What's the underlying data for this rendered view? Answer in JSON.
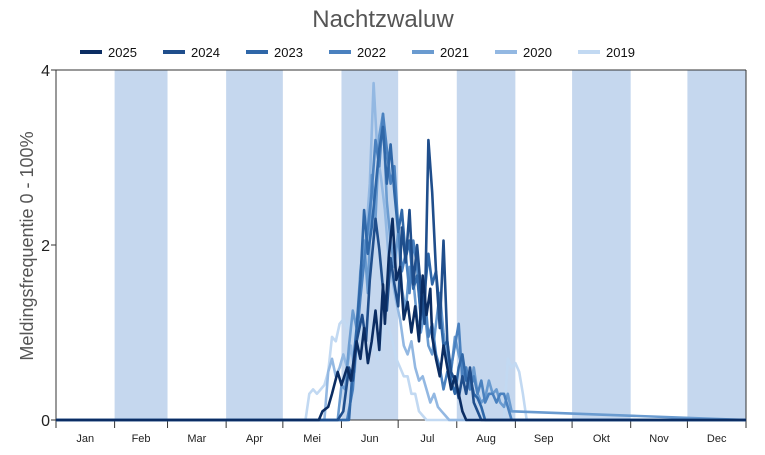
{
  "chart_data": {
    "type": "line",
    "title": "Nachtzwaluw",
    "xlabel": "",
    "ylabel": "Meldingsfrequentie 0 - 100%",
    "ylim": [
      0,
      4
    ],
    "y_ticks": [
      0,
      2,
      4
    ],
    "grid": false,
    "legend_position": "top",
    "month_labels": [
      "Jan",
      "Feb",
      "Mar",
      "Apr",
      "Mei",
      "Jun",
      "Jul",
      "Aug",
      "Sep",
      "Okt",
      "Nov",
      "Dec"
    ],
    "x_unit": "day of year",
    "xlim": [
      1,
      366
    ],
    "series": [
      {
        "name": "2025",
        "color": "#0b2d63",
        "x": [
          1,
          140,
          142,
          145,
          147,
          150,
          152,
          155,
          157,
          160,
          162,
          164,
          166,
          168,
          170,
          172,
          174,
          175,
          177,
          179,
          181,
          183,
          185,
          187,
          189,
          191,
          193,
          195,
          197,
          199,
          200,
          202,
          204,
          206,
          208,
          210,
          212,
          214,
          216,
          218,
          366
        ],
        "y": [
          0,
          0,
          0.1,
          0.15,
          0.3,
          0.55,
          0.4,
          0.6,
          0.45,
          0.9,
          0.7,
          1.05,
          0.65,
          0.9,
          1.25,
          0.8,
          1.55,
          1.1,
          1.85,
          2.3,
          1.6,
          1.75,
          1.15,
          1.35,
          1.0,
          1.3,
          0.9,
          1.65,
          1.2,
          1.5,
          0.95,
          0.7,
          0.5,
          0.85,
          0.6,
          0.35,
          0.5,
          0.3,
          0.1,
          0,
          0
        ]
      },
      {
        "name": "2024",
        "color": "#1f4e8c",
        "x": [
          1,
          150,
          153,
          156,
          158,
          160,
          163,
          165,
          167,
          170,
          172,
          174,
          176,
          178,
          180,
          182,
          184,
          186,
          188,
          190,
          192,
          194,
          196,
          198,
          200,
          202,
          204,
          206,
          208,
          210,
          212,
          214,
          216,
          218,
          220,
          222,
          224,
          226,
          366
        ],
        "y": [
          0,
          0,
          0.1,
          0.6,
          0.45,
          0.9,
          1.2,
          0.9,
          1.6,
          2.3,
          1.95,
          1.5,
          1.25,
          1.85,
          1.55,
          1.3,
          2.2,
          1.8,
          2.4,
          1.55,
          2.0,
          1.5,
          1.1,
          3.2,
          2.6,
          1.7,
          1.05,
          2.05,
          0.9,
          0.55,
          0.45,
          0.25,
          0.5,
          0.3,
          0.6,
          0.2,
          0.1,
          0,
          0
        ]
      },
      {
        "name": "2023",
        "color": "#2f67a8",
        "x": [
          1,
          156,
          158,
          160,
          162,
          164,
          166,
          168,
          170,
          172,
          174,
          176,
          178,
          180,
          182,
          184,
          186,
          188,
          190,
          192,
          194,
          196,
          198,
          200,
          202,
          204,
          206,
          208,
          210,
          212,
          214,
          216,
          218,
          220,
          222,
          224,
          226,
          228,
          366
        ],
        "y": [
          0,
          0,
          0.6,
          1.05,
          1.6,
          2.4,
          1.9,
          2.2,
          2.65,
          3.1,
          3.35,
          2.7,
          3.15,
          2.6,
          2.15,
          2.4,
          1.85,
          2.05,
          1.5,
          1.65,
          1.2,
          1.45,
          1.9,
          1.55,
          1.7,
          1.25,
          0.85,
          0.9,
          0.45,
          0.3,
          0.6,
          0.75,
          0.45,
          0.5,
          0.3,
          0.25,
          0.15,
          0,
          0
        ]
      },
      {
        "name": "2022",
        "color": "#4a81bf",
        "x": [
          1,
          155,
          158,
          160,
          162,
          164,
          166,
          168,
          170,
          172,
          174,
          176,
          178,
          180,
          182,
          184,
          186,
          188,
          190,
          192,
          194,
          196,
          198,
          200,
          202,
          204,
          206,
          208,
          210,
          212,
          214,
          216,
          218,
          220,
          222,
          224,
          226,
          228,
          230,
          232,
          234,
          236,
          238,
          240,
          242,
          366
        ],
        "y": [
          0,
          0,
          0.35,
          0.9,
          1.4,
          1.8,
          2.2,
          2.6,
          3.2,
          2.9,
          3.5,
          3.1,
          2.7,
          2.9,
          2.2,
          1.7,
          1.9,
          1.45,
          2.05,
          1.75,
          1.15,
          1.45,
          0.95,
          1.1,
          0.75,
          0.6,
          0.35,
          0.55,
          0.6,
          0.85,
          1.1,
          0.45,
          0.6,
          0.35,
          0.5,
          0.3,
          0.45,
          0.2,
          0.3,
          0.3,
          0.2,
          0.3,
          0.3,
          0.15,
          0,
          0
        ]
      },
      {
        "name": "2021",
        "color": "#6a9bd0",
        "x": [
          1,
          150,
          152,
          154,
          156,
          158,
          160,
          162,
          164,
          166,
          168,
          170,
          172,
          174,
          176,
          178,
          180,
          182,
          184,
          186,
          188,
          190,
          192,
          194,
          196,
          198,
          200,
          202,
          204,
          206,
          208,
          210,
          212,
          214,
          216,
          218,
          220,
          222,
          224,
          226,
          228,
          230,
          232,
          234,
          236,
          238,
          240,
          242,
          366
        ],
        "y": [
          0,
          0,
          0.4,
          0.35,
          0.85,
          1.25,
          1.05,
          1.7,
          2.05,
          1.45,
          2.8,
          2.3,
          3.25,
          3.5,
          2.5,
          2.05,
          1.75,
          2.15,
          1.5,
          1.25,
          1.75,
          1.6,
          1.15,
          1.0,
          1.25,
          0.85,
          0.75,
          1.1,
          1.45,
          1.0,
          0.65,
          0.55,
          0.95,
          0.75,
          0.6,
          0.45,
          0.35,
          0.6,
          0.3,
          0.2,
          0.25,
          0.45,
          0.3,
          0.35,
          0.2,
          0.15,
          0.3,
          0.1,
          0
        ]
      },
      {
        "name": "2020",
        "color": "#93b8e2",
        "x": [
          1,
          143,
          145,
          147,
          149,
          151,
          153,
          155,
          157,
          159,
          161,
          163,
          165,
          167,
          169,
          171,
          173,
          175,
          177,
          179,
          181,
          183,
          185,
          187,
          189,
          191,
          193,
          195,
          197,
          199,
          201,
          203,
          205,
          207,
          209,
          366
        ],
        "y": [
          0,
          0,
          0.55,
          0.7,
          0.5,
          0.6,
          0.75,
          0.6,
          0.85,
          0.55,
          1.25,
          1.7,
          2.1,
          2.7,
          3.85,
          3.05,
          2.75,
          2.4,
          1.85,
          1.6,
          1.35,
          1.15,
          0.85,
          0.75,
          0.9,
          0.6,
          0.45,
          0.5,
          0.35,
          0.2,
          0.3,
          0.15,
          0.1,
          0.05,
          0,
          0
        ]
      },
      {
        "name": "2019",
        "color": "#c2d9f2",
        "x": [
          1,
          133,
          135,
          137,
          139,
          141,
          143,
          145,
          147,
          149,
          151,
          153,
          155,
          157,
          159,
          161,
          163,
          165,
          167,
          169,
          171,
          173,
          175,
          177,
          179,
          181,
          183,
          185,
          187,
          189,
          191,
          193,
          195,
          197,
          199,
          201,
          238,
          240,
          242,
          244,
          246,
          248,
          250,
          366
        ],
        "y": [
          0,
          0,
          0.3,
          0.35,
          0.3,
          0.35,
          0.4,
          0.55,
          0.95,
          0.9,
          1.1,
          1.15,
          1.05,
          1.15,
          0.9,
          0.7,
          1.1,
          1.25,
          1.1,
          0.8,
          0.7,
          0.85,
          1.1,
          1.05,
          0.9,
          0.7,
          0.6,
          0.5,
          0.5,
          0.3,
          0.3,
          0.1,
          0.05,
          0,
          0,
          0,
          0,
          0.7,
          0.6,
          0.65,
          0.55,
          0.3,
          0,
          0
        ]
      }
    ]
  }
}
